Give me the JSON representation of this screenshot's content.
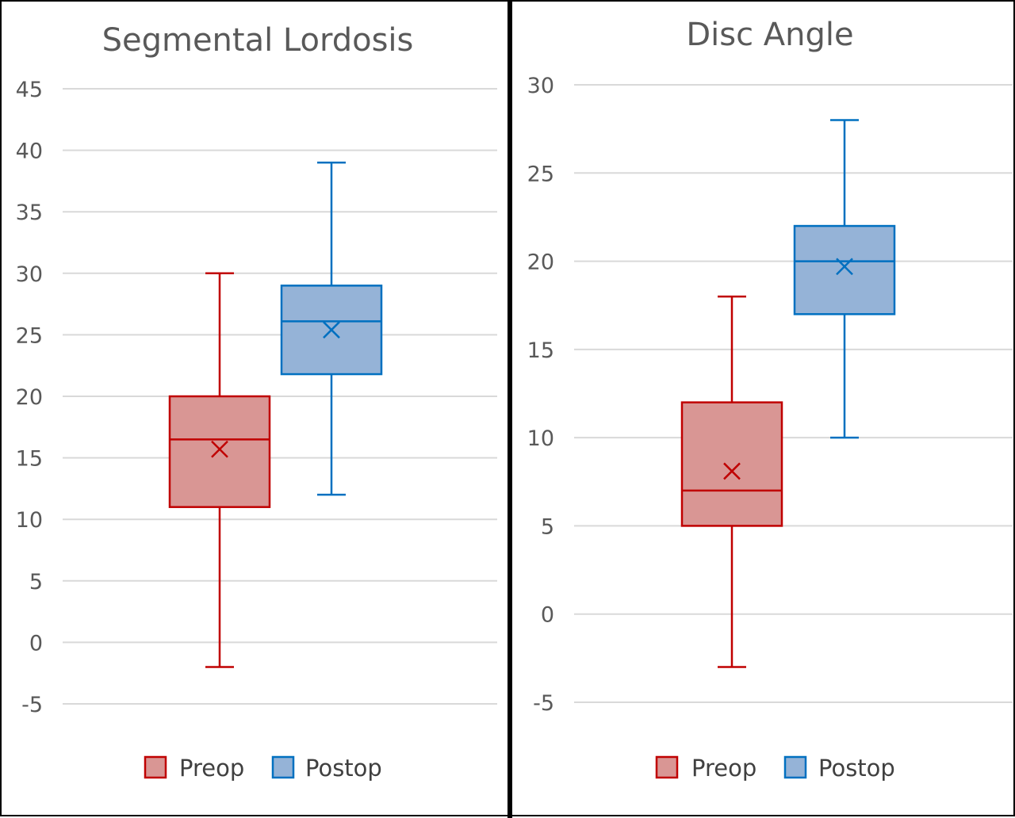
{
  "chart_data": [
    {
      "type": "box",
      "title": "Segmental Lordosis",
      "ylim": [
        -5,
        45
      ],
      "yticks": [
        -5,
        0,
        5,
        10,
        15,
        20,
        25,
        30,
        35,
        40,
        45
      ],
      "grid": true,
      "legend_position": "bottom",
      "series": [
        {
          "name": "Preop",
          "min": -2,
          "q1": 11,
          "median": 16.5,
          "q3": 20,
          "max": 30,
          "mean": 15.7,
          "stroke": "#C00000",
          "fill": "#D99694"
        },
        {
          "name": "Postop",
          "min": 12,
          "q1": 21.8,
          "median": 26.1,
          "q3": 29,
          "max": 39,
          "mean": 25.4,
          "stroke": "#0070C0",
          "fill": "#95B3D7"
        }
      ]
    },
    {
      "type": "box",
      "title": "Disc Angle",
      "ylim": [
        -5,
        30
      ],
      "yticks": [
        -5,
        0,
        5,
        10,
        15,
        20,
        25,
        30
      ],
      "grid": true,
      "legend_position": "bottom",
      "series": [
        {
          "name": "Preop",
          "min": -3,
          "q1": 5,
          "median": 7,
          "q3": 12,
          "max": 18,
          "mean": 8.1,
          "stroke": "#C00000",
          "fill": "#D99694"
        },
        {
          "name": "Postop",
          "min": 10,
          "q1": 17,
          "median": 20,
          "q3": 22,
          "max": 28,
          "mean": 19.7,
          "stroke": "#0070C0",
          "fill": "#95B3D7"
        }
      ]
    }
  ],
  "colors": {
    "grid": "#D9D9D9",
    "axis_text": "#595959",
    "title_text": "#595959"
  }
}
